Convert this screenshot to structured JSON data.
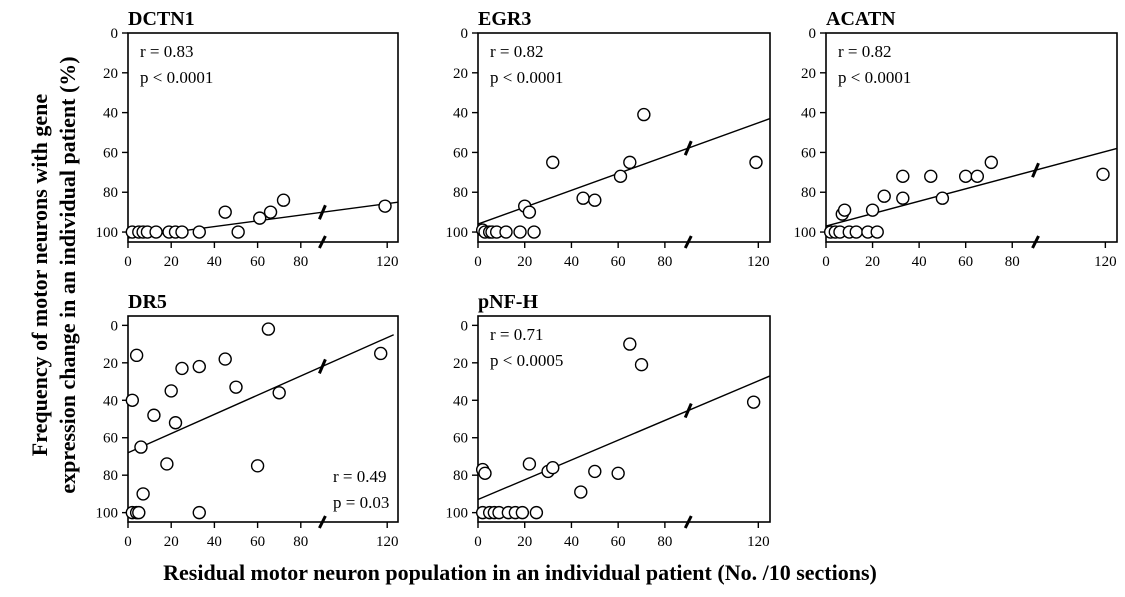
{
  "figure": {
    "ylabel_line1": "Frequency of motor neurons with gene",
    "ylabel_line2": "expression change in an individual patient (%)",
    "xlabel": "Residual  motor neuron population in an individual patient (No. /10 sections)"
  },
  "chart_data": [
    {
      "type": "scatter",
      "title": "DCTN1",
      "stats": [
        "r = 0.83",
        "p < 0.0001"
      ],
      "stats_position": "top-left",
      "xlim": [
        0,
        125
      ],
      "ylim": [
        0,
        105
      ],
      "y_inverted": true,
      "xticks": [
        0,
        20,
        40,
        60,
        80,
        120
      ],
      "yticks": [
        0,
        20,
        40,
        60,
        80,
        100
      ],
      "axis_break_x": 90,
      "points": [
        [
          2,
          100
        ],
        [
          5,
          100
        ],
        [
          7,
          100
        ],
        [
          9,
          100
        ],
        [
          13,
          100
        ],
        [
          19,
          100
        ],
        [
          22,
          100
        ],
        [
          25,
          100
        ],
        [
          33,
          100
        ],
        [
          45,
          90
        ],
        [
          51,
          100
        ],
        [
          61,
          93
        ],
        [
          66,
          90
        ],
        [
          72,
          84
        ],
        [
          119,
          87
        ]
      ],
      "fit": [
        [
          0,
          103
        ],
        [
          125,
          85
        ]
      ]
    },
    {
      "type": "scatter",
      "title": "EGR3",
      "stats": [
        "r = 0.82",
        "p < 0.0001"
      ],
      "stats_position": "top-left",
      "xlim": [
        0,
        125
      ],
      "ylim": [
        0,
        105
      ],
      "y_inverted": true,
      "xticks": [
        0,
        20,
        40,
        60,
        80,
        120
      ],
      "yticks": [
        0,
        20,
        40,
        60,
        80,
        100
      ],
      "axis_break_x": 90,
      "points": [
        [
          2,
          99
        ],
        [
          3,
          100
        ],
        [
          5,
          100
        ],
        [
          6,
          100
        ],
        [
          8,
          100
        ],
        [
          12,
          100
        ],
        [
          18,
          100
        ],
        [
          20,
          87
        ],
        [
          22,
          90
        ],
        [
          24,
          100
        ],
        [
          32,
          65
        ],
        [
          45,
          83
        ],
        [
          50,
          84
        ],
        [
          61,
          72
        ],
        [
          65,
          65
        ],
        [
          71,
          41
        ],
        [
          119,
          65
        ]
      ],
      "fit": [
        [
          0,
          96
        ],
        [
          125,
          43
        ]
      ]
    },
    {
      "type": "scatter",
      "title": "ACATN",
      "stats": [
        "r = 0.82",
        "p < 0.0001"
      ],
      "stats_position": "top-left",
      "xlim": [
        0,
        125
      ],
      "ylim": [
        0,
        105
      ],
      "y_inverted": true,
      "xticks": [
        0,
        20,
        40,
        60,
        80,
        120
      ],
      "yticks": [
        0,
        20,
        40,
        60,
        80,
        100
      ],
      "axis_break_x": 90,
      "points": [
        [
          2,
          100
        ],
        [
          4,
          100
        ],
        [
          6,
          100
        ],
        [
          7,
          91
        ],
        [
          8,
          89
        ],
        [
          10,
          100
        ],
        [
          13,
          100
        ],
        [
          18,
          100
        ],
        [
          20,
          89
        ],
        [
          22,
          100
        ],
        [
          25,
          82
        ],
        [
          33,
          72
        ],
        [
          33,
          83
        ],
        [
          45,
          72
        ],
        [
          50,
          83
        ],
        [
          60,
          72
        ],
        [
          65,
          72
        ],
        [
          71,
          65
        ],
        [
          119,
          71
        ]
      ],
      "fit": [
        [
          0,
          97
        ],
        [
          125,
          58
        ]
      ]
    },
    {
      "type": "scatter",
      "title": "DR5",
      "stats": [
        "r = 0.49",
        "p = 0.03"
      ],
      "stats_position": "bottom-right",
      "xlim": [
        0,
        125
      ],
      "ylim": [
        -5,
        105
      ],
      "y_inverted": true,
      "xticks": [
        0,
        20,
        40,
        60,
        80,
        120
      ],
      "yticks": [
        0,
        20,
        40,
        60,
        80,
        100
      ],
      "axis_break_x": 90,
      "points": [
        [
          2,
          40
        ],
        [
          2,
          100
        ],
        [
          4,
          100
        ],
        [
          4,
          16
        ],
        [
          5,
          100
        ],
        [
          6,
          65
        ],
        [
          7,
          90
        ],
        [
          12,
          48
        ],
        [
          18,
          74
        ],
        [
          20,
          35
        ],
        [
          22,
          52
        ],
        [
          25,
          23
        ],
        [
          33,
          22
        ],
        [
          33,
          100
        ],
        [
          45,
          18
        ],
        [
          50,
          33
        ],
        [
          60,
          75
        ],
        [
          65,
          2
        ],
        [
          70,
          36
        ],
        [
          117,
          15
        ]
      ],
      "fit": [
        [
          0,
          68
        ],
        [
          123,
          5
        ]
      ]
    },
    {
      "type": "scatter",
      "title": "pNF-H",
      "stats": [
        "r = 0.71",
        "p < 0.0005"
      ],
      "stats_position": "top-left",
      "xlim": [
        0,
        125
      ],
      "ylim": [
        -5,
        105
      ],
      "y_inverted": true,
      "xticks": [
        0,
        20,
        40,
        60,
        80,
        120
      ],
      "yticks": [
        0,
        20,
        40,
        60,
        80,
        100
      ],
      "axis_break_x": 90,
      "points": [
        [
          2,
          77
        ],
        [
          3,
          79
        ],
        [
          2,
          100
        ],
        [
          5,
          100
        ],
        [
          7,
          100
        ],
        [
          9,
          100
        ],
        [
          13,
          100
        ],
        [
          16,
          100
        ],
        [
          19,
          100
        ],
        [
          22,
          74
        ],
        [
          25,
          100
        ],
        [
          30,
          78
        ],
        [
          32,
          76
        ],
        [
          44,
          89
        ],
        [
          50,
          78
        ],
        [
          60,
          79
        ],
        [
          65,
          10
        ],
        [
          70,
          21
        ],
        [
          118,
          41
        ]
      ],
      "fit": [
        [
          0,
          93
        ],
        [
          125,
          27
        ]
      ]
    }
  ]
}
